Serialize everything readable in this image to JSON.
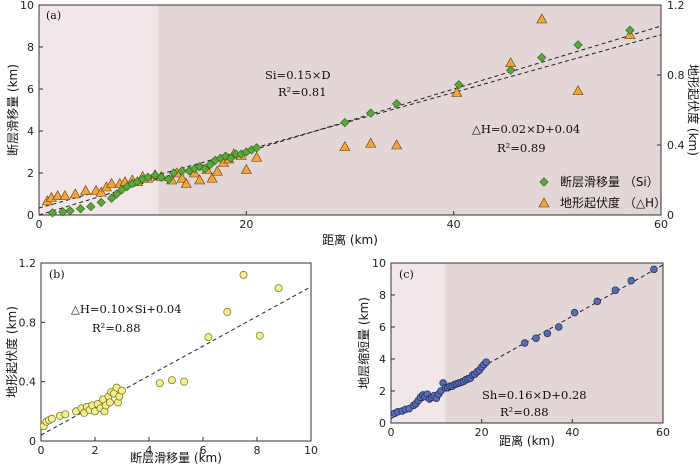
{
  "chart_data": [
    {
      "id": "a",
      "type": "scatter",
      "panel_label": "(a)",
      "xlabel": "距离 (km)",
      "ylabel_left": "断层滑移量 (km)",
      "ylabel_right": "地形起伏度 (km)",
      "xlim": [
        0,
        60
      ],
      "ylim_left": [
        0,
        10
      ],
      "ylim_right": [
        0,
        1.2
      ],
      "xticks": [
        0,
        20,
        40,
        60
      ],
      "yticks_left": [
        0,
        2,
        4,
        6,
        8,
        10
      ],
      "yticks_right": [
        0,
        0.4,
        0.8,
        1.2
      ],
      "shaded_regions": [
        {
          "x0": 0,
          "x1": 11.5,
          "color": "#f1e6e8"
        },
        {
          "x0": 11.5,
          "x1": 60,
          "color": "#e3d6d6"
        }
      ],
      "series": [
        {
          "name": "断层滑移量 (Si)",
          "axis": "left",
          "marker": "diamond",
          "color": "#5aa83c",
          "x": [
            1.3,
            2.3,
            3.0,
            4.0,
            5.0,
            6.0,
            7.0,
            7.5,
            8.0,
            8.5,
            9.0,
            9.5,
            10.0,
            10.5,
            11.2,
            11.8,
            12.5,
            13.0,
            13.8,
            14.5,
            15.0,
            15.5,
            16.0,
            16.5,
            17.0,
            17.5,
            18.0,
            18.5,
            19.0,
            19.5,
            20.0,
            20.5,
            21.0,
            29.5,
            32.0,
            34.5,
            40.5,
            45.5,
            48.5,
            52.0,
            57.0
          ],
          "y": [
            0.1,
            0.15,
            0.2,
            0.3,
            0.4,
            0.6,
            0.8,
            1.0,
            1.2,
            1.35,
            1.5,
            1.6,
            1.7,
            1.8,
            1.9,
            1.8,
            1.7,
            2.0,
            2.1,
            2.1,
            2.2,
            2.3,
            2.2,
            2.4,
            2.6,
            2.7,
            2.8,
            2.7,
            2.9,
            2.9,
            3.0,
            3.1,
            3.2,
            4.4,
            4.85,
            5.3,
            6.2,
            6.9,
            7.5,
            8.1,
            8.8
          ]
        },
        {
          "name": "地形起伏度 (△H)",
          "axis": "right",
          "marker": "triangle",
          "color": "#f3a53a",
          "x": [
            0.8,
            1.2,
            1.8,
            2.5,
            3.5,
            4.5,
            5.5,
            6.0,
            6.5,
            7.0,
            7.8,
            8.3,
            9.0,
            9.5,
            10.0,
            10.5,
            11.2,
            11.8,
            12.8,
            13.3,
            13.8,
            14.2,
            15.0,
            15.5,
            16.2,
            16.7,
            17.2,
            17.8,
            18.3,
            18.8,
            19.5,
            20.0,
            21.0,
            29.5,
            32.0,
            34.5,
            40.3,
            45.5,
            48.5,
            52.0,
            57.0
          ],
          "y": [
            0.08,
            0.1,
            0.11,
            0.11,
            0.12,
            0.14,
            0.14,
            0.13,
            0.16,
            0.18,
            0.18,
            0.19,
            0.2,
            0.19,
            0.22,
            0.21,
            0.23,
            0.22,
            0.2,
            0.24,
            0.21,
            0.18,
            0.24,
            0.2,
            0.26,
            0.21,
            0.25,
            0.3,
            0.32,
            0.35,
            0.34,
            0.26,
            0.33,
            0.39,
            0.41,
            0.4,
            0.7,
            0.87,
            1.12,
            0.71,
            1.03
          ]
        }
      ],
      "fits": [
        {
          "label_lines": [
            "Si=0.15×D",
            "R²=0.81"
          ],
          "axis": "left",
          "slope": 0.15,
          "intercept": 0.0
        },
        {
          "label_lines": [
            "△H=0.02×D+0.04",
            "R²=0.89"
          ],
          "axis": "right",
          "slope": 0.0165,
          "intercept": 0.04
        }
      ],
      "legend": [
        {
          "label": "断层滑移量 （Si）",
          "marker": "diamond",
          "color": "#5aa83c"
        },
        {
          "label": "地形起伏度 （△H）",
          "marker": "triangle",
          "color": "#f3a53a"
        }
      ],
      "legend_position": "bottom-right"
    },
    {
      "id": "b",
      "type": "scatter",
      "panel_label": "(b)",
      "xlabel": "断层滑移量 (km)",
      "ylabel": "地形起伏度 (km)",
      "xlim": [
        0,
        10
      ],
      "ylim": [
        0,
        1.2
      ],
      "xticks": [
        0,
        2,
        4,
        6,
        8,
        10
      ],
      "yticks": [
        0,
        0.4,
        0.8,
        1.2
      ],
      "series": [
        {
          "name": "",
          "marker": "circle",
          "color": "#f5f08a",
          "x": [
            0.1,
            0.2,
            0.3,
            0.4,
            0.7,
            0.9,
            1.3,
            1.5,
            1.6,
            1.7,
            1.8,
            1.9,
            2.0,
            2.1,
            2.2,
            2.3,
            2.35,
            2.4,
            2.5,
            2.55,
            2.6,
            2.7,
            2.8,
            2.85,
            2.9,
            3.0,
            4.4,
            4.85,
            5.3,
            6.2,
            6.9,
            7.5,
            8.1,
            8.8
          ],
          "y": [
            0.1,
            0.13,
            0.14,
            0.15,
            0.17,
            0.18,
            0.2,
            0.22,
            0.19,
            0.23,
            0.21,
            0.24,
            0.2,
            0.25,
            0.22,
            0.28,
            0.2,
            0.24,
            0.3,
            0.26,
            0.33,
            0.32,
            0.36,
            0.26,
            0.3,
            0.34,
            0.39,
            0.41,
            0.4,
            0.7,
            0.87,
            1.12,
            0.71,
            1.03
          ]
        }
      ],
      "fits": [
        {
          "label_lines": [
            "△H=0.10×Si+0.04",
            "R²=0.88"
          ],
          "slope": 0.1,
          "intercept": 0.04
        }
      ]
    },
    {
      "id": "c",
      "type": "scatter",
      "panel_label": "(c)",
      "xlabel": "距离 (km)",
      "ylabel": "地层缩短量 (km)",
      "xlim": [
        0,
        60
      ],
      "ylim": [
        0,
        10
      ],
      "xticks": [
        0,
        20,
        40,
        60
      ],
      "yticks": [
        0,
        2,
        4,
        6,
        8,
        10
      ],
      "shaded_regions": [
        {
          "x0": 0,
          "x1": 12,
          "color": "#f1e6e8"
        },
        {
          "x0": 12,
          "x1": 60,
          "color": "#e3d6d6"
        }
      ],
      "series": [
        {
          "name": "",
          "marker": "circle",
          "color": "#5a6cb0",
          "x": [
            0.8,
            1.5,
            2.5,
            3.2,
            4.0,
            5.0,
            5.5,
            6.0,
            6.5,
            7.0,
            7.5,
            8.0,
            8.5,
            9.0,
            9.5,
            10.0,
            10.5,
            11.0,
            11.5,
            12.0,
            12.5,
            13.0,
            13.5,
            14.0,
            14.5,
            15.0,
            15.5,
            16.0,
            16.5,
            17.0,
            17.5,
            18.0,
            18.5,
            19.0,
            19.5,
            20.0,
            20.5,
            21.0,
            29.5,
            32.0,
            34.5,
            37.0,
            40.5,
            45.5,
            49.5,
            53.0,
            58.0
          ],
          "y": [
            0.6,
            0.7,
            0.75,
            0.85,
            0.9,
            1.1,
            1.2,
            1.4,
            1.6,
            1.75,
            1.65,
            1.8,
            1.5,
            1.6,
            1.7,
            1.55,
            1.8,
            2.0,
            2.5,
            2.2,
            2.2,
            2.3,
            2.3,
            2.4,
            2.45,
            2.5,
            2.55,
            2.6,
            2.7,
            2.75,
            2.8,
            3.0,
            3.05,
            3.2,
            3.3,
            3.5,
            3.65,
            3.8,
            5.0,
            5.3,
            5.6,
            6.0,
            6.9,
            7.6,
            8.3,
            8.9,
            9.6
          ]
        }
      ],
      "fits": [
        {
          "label_lines": [
            "Sh=0.16×D+0.28",
            "R²=0.88"
          ],
          "slope": 0.16,
          "intercept": 0.28
        }
      ]
    }
  ]
}
